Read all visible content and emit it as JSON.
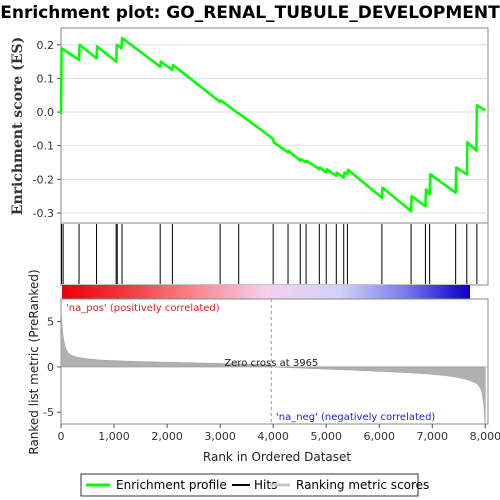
{
  "title": "Enrichment plot: GO_RENAL_TUBULE_DEVELOPMENT",
  "colors": {
    "profile": "#00ff00",
    "hits": "#000000",
    "metric": "#b0b0b0",
    "pos_label": "#e02020",
    "neg_label": "#2020e0"
  },
  "chart_data": {
    "type": "line",
    "es_panel": {
      "ylabel": "Enrichment score (ES)",
      "ylim": [
        -0.33,
        0.25
      ],
      "yticks": [
        "0.2",
        "0.1",
        "0.0",
        "-0.1",
        "-0.2",
        "-0.3"
      ],
      "ytick_values": [
        0.2,
        0.1,
        0.0,
        -0.1,
        -0.2,
        -0.3
      ],
      "profile": [
        [
          0,
          -0.005
        ],
        [
          10,
          0.19
        ],
        [
          340,
          0.155
        ],
        [
          350,
          0.2
        ],
        [
          670,
          0.16
        ],
        [
          680,
          0.195
        ],
        [
          1040,
          0.15
        ],
        [
          1050,
          0.2
        ],
        [
          1140,
          0.19
        ],
        [
          1150,
          0.22
        ],
        [
          1870,
          0.135
        ],
        [
          1880,
          0.15
        ],
        [
          2100,
          0.125
        ],
        [
          2110,
          0.14
        ],
        [
          3000,
          0.03
        ],
        [
          3010,
          0.035
        ],
        [
          3350,
          -0.005
        ],
        [
          3360,
          -0.005
        ],
        [
          4000,
          -0.08
        ],
        [
          4010,
          -0.09
        ],
        [
          4280,
          -0.12
        ],
        [
          4290,
          -0.115
        ],
        [
          4510,
          -0.145
        ],
        [
          4520,
          -0.14
        ],
        [
          4620,
          -0.15
        ],
        [
          4630,
          -0.145
        ],
        [
          4870,
          -0.17
        ],
        [
          4880,
          -0.165
        ],
        [
          5000,
          -0.18
        ],
        [
          5010,
          -0.17
        ],
        [
          5190,
          -0.19
        ],
        [
          5200,
          -0.18
        ],
        [
          5330,
          -0.195
        ],
        [
          5340,
          -0.18
        ],
        [
          5400,
          -0.185
        ],
        [
          5410,
          -0.172
        ],
        [
          6050,
          -0.255
        ],
        [
          6060,
          -0.225
        ],
        [
          6600,
          -0.295
        ],
        [
          6610,
          -0.25
        ],
        [
          6870,
          -0.28
        ],
        [
          6880,
          -0.23
        ],
        [
          6950,
          -0.245
        ],
        [
          6960,
          -0.185
        ],
        [
          7440,
          -0.24
        ],
        [
          7450,
          -0.165
        ],
        [
          7650,
          -0.185
        ],
        [
          7660,
          -0.09
        ],
        [
          7830,
          -0.115
        ],
        [
          7840,
          0.02
        ],
        [
          8000,
          0.005
        ]
      ]
    },
    "hits": [
      10,
      40,
      340,
      670,
      1040,
      1060,
      1150,
      1870,
      2100,
      3000,
      3350,
      4000,
      4280,
      4510,
      4620,
      4870,
      5000,
      5190,
      5330,
      5400,
      6050,
      6600,
      6870,
      6950,
      7440,
      7650,
      7840
    ],
    "metric_panel": {
      "ylabel": "Ranked list metric (PreRanked)",
      "ylim": [
        -6.3,
        7.5
      ],
      "yticks": [
        "5",
        "0",
        "-5"
      ],
      "ytick_values": [
        5,
        0,
        -5
      ],
      "zero_cross": 3965,
      "zero_cross_label": "Zero cross at 3965",
      "pos_label": "'na_pos' (positively correlated)",
      "neg_label": "'na_neg' (negatively correlated)"
    },
    "xaxis": {
      "xlabel": "Rank in Ordered Dataset",
      "xlim": [
        0,
        8050
      ],
      "xticks": [
        "0",
        "1,000",
        "2,000",
        "3,000",
        "4,000",
        "5,000",
        "6,000",
        "7,000",
        "8,000"
      ],
      "xtick_values": [
        0,
        1000,
        2000,
        3000,
        4000,
        5000,
        6000,
        7000,
        8000
      ]
    },
    "legend": {
      "placement": "bottom",
      "items": [
        "Enrichment profile",
        "Hits",
        "Ranking metric scores"
      ]
    }
  }
}
